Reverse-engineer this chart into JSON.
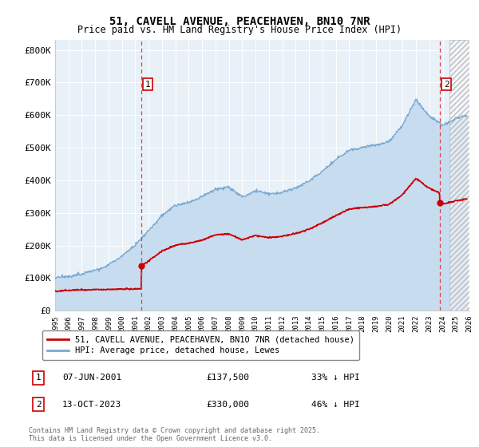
{
  "title": "51, CAVELL AVENUE, PEACEHAVEN, BN10 7NR",
  "subtitle": "Price paid vs. HM Land Registry's House Price Index (HPI)",
  "ylabel_ticks": [
    "£0",
    "£100K",
    "£200K",
    "£300K",
    "£400K",
    "£500K",
    "£600K",
    "£700K",
    "£800K"
  ],
  "ytick_values": [
    0,
    100000,
    200000,
    300000,
    400000,
    500000,
    600000,
    700000,
    800000
  ],
  "ylim": [
    0,
    830000
  ],
  "xlim_start": 1995,
  "xlim_end": 2026,
  "hpi_color": "#7aaad0",
  "hpi_fill_color": "#c8dcf0",
  "property_color": "#cc0000",
  "plot_bg": "#e8f0f8",
  "marker1_x": 2001.44,
  "marker1_price": 137500,
  "marker2_x": 2023.78,
  "marker2_price": 330000,
  "legend_property": "51, CAVELL AVENUE, PEACEHAVEN, BN10 7NR (detached house)",
  "legend_hpi": "HPI: Average price, detached house, Lewes",
  "footnote": "Contains HM Land Registry data © Crown copyright and database right 2025.\nThis data is licensed under the Open Government Licence v3.0.",
  "table_row1": [
    "1",
    "07-JUN-2001",
    "£137,500",
    "33% ↓ HPI"
  ],
  "table_row2": [
    "2",
    "13-OCT-2023",
    "£330,000",
    "46% ↓ HPI"
  ],
  "hatch_start": 2024.5
}
